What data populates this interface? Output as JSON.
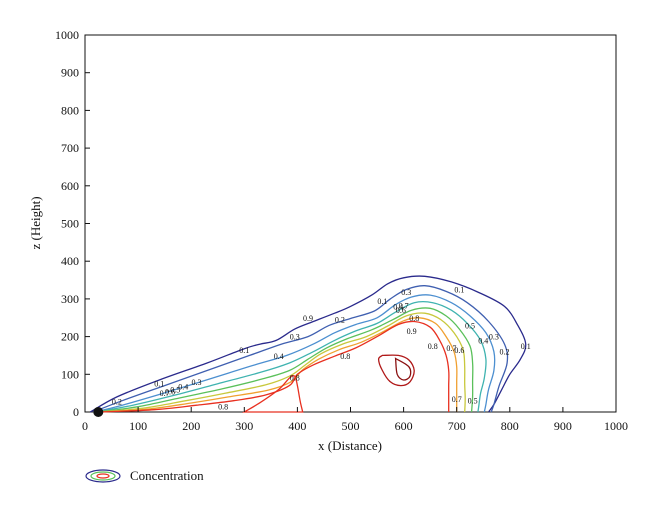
{
  "chart_data": {
    "type": "contour",
    "title": "",
    "xlabel": "x (Distance)",
    "ylabel": "z (Height)",
    "xlim": [
      0,
      1000
    ],
    "ylim": [
      0,
      1000
    ],
    "x_ticks": [
      0,
      100,
      200,
      300,
      400,
      500,
      600,
      700,
      800,
      900,
      1000
    ],
    "y_ticks": [
      0,
      100,
      200,
      300,
      400,
      500,
      600,
      700,
      800,
      900,
      1000
    ],
    "source_point": {
      "x": 25,
      "y": 0
    },
    "legend": {
      "label": "Concentration",
      "placement": "bottom-left"
    },
    "levels": [
      {
        "value": 0.1,
        "color": "#2a2a8c",
        "points": [
          [
            10,
            0
          ],
          [
            60,
            40
          ],
          [
            140,
            85
          ],
          [
            230,
            130
          ],
          [
            300,
            168
          ],
          [
            330,
            180
          ],
          [
            360,
            190
          ],
          [
            395,
            220
          ],
          [
            430,
            240
          ],
          [
            470,
            262
          ],
          [
            500,
            280
          ],
          [
            540,
            310
          ],
          [
            570,
            340
          ],
          [
            600,
            356
          ],
          [
            640,
            360
          ],
          [
            690,
            345
          ],
          [
            740,
            318
          ],
          [
            790,
            280
          ],
          [
            815,
            230
          ],
          [
            830,
            180
          ],
          [
            820,
            140
          ],
          [
            800,
            100
          ],
          [
            785,
            60
          ],
          [
            770,
            20
          ],
          [
            760,
            0
          ]
        ],
        "labels": [
          {
            "x": 140,
            "y": 75,
            "text": "0.1"
          },
          {
            "x": 300,
            "y": 165,
            "text": "0.1"
          },
          {
            "x": 560,
            "y": 295,
            "text": "0.1"
          },
          {
            "x": 705,
            "y": 325,
            "text": "0.1"
          },
          {
            "x": 830,
            "y": 175,
            "text": "0.1"
          }
        ]
      },
      {
        "value": 0.2,
        "color": "#3f5fb0",
        "points": [
          [
            15,
            0
          ],
          [
            70,
            30
          ],
          [
            150,
            70
          ],
          [
            230,
            110
          ],
          [
            310,
            150
          ],
          [
            370,
            180
          ],
          [
            420,
            200
          ],
          [
            460,
            230
          ],
          [
            500,
            248
          ],
          [
            545,
            268
          ],
          [
            575,
            300
          ],
          [
            605,
            325
          ],
          [
            640,
            335
          ],
          [
            680,
            320
          ],
          [
            720,
            290
          ],
          [
            760,
            240
          ],
          [
            790,
            180
          ],
          [
            795,
            130
          ],
          [
            780,
            70
          ],
          [
            770,
            20
          ],
          [
            765,
            0
          ]
        ],
        "labels": [
          {
            "x": 60,
            "y": 28,
            "text": "0.2"
          },
          {
            "x": 480,
            "y": 245,
            "text": "0.2"
          },
          {
            "x": 790,
            "y": 160,
            "text": "0.2"
          }
        ]
      },
      {
        "value": 0.3,
        "color": "#4c8fd0",
        "points": [
          [
            20,
            0
          ],
          [
            80,
            22
          ],
          [
            160,
            55
          ],
          [
            240,
            90
          ],
          [
            320,
            125
          ],
          [
            380,
            150
          ],
          [
            430,
            180
          ],
          [
            470,
            210
          ],
          [
            510,
            232
          ],
          [
            550,
            250
          ],
          [
            585,
            285
          ],
          [
            615,
            305
          ],
          [
            650,
            310
          ],
          [
            690,
            290
          ],
          [
            725,
            255
          ],
          [
            755,
            210
          ],
          [
            770,
            160
          ],
          [
            770,
            110
          ],
          [
            760,
            60
          ],
          [
            755,
            20
          ],
          [
            752,
            0
          ]
        ],
        "labels": [
          {
            "x": 210,
            "y": 80,
            "text": "0.3"
          },
          {
            "x": 395,
            "y": 200,
            "text": "0.3"
          },
          {
            "x": 605,
            "y": 318,
            "text": "0.3"
          },
          {
            "x": 770,
            "y": 200,
            "text": "0.3"
          }
        ]
      },
      {
        "value": 0.4,
        "color": "#3fb3b0",
        "points": [
          [
            22,
            0
          ],
          [
            90,
            18
          ],
          [
            170,
            45
          ],
          [
            250,
            75
          ],
          [
            330,
            105
          ],
          [
            385,
            130
          ],
          [
            430,
            160
          ],
          [
            470,
            190
          ],
          [
            510,
            215
          ],
          [
            550,
            235
          ],
          [
            585,
            265
          ],
          [
            620,
            290
          ],
          [
            655,
            290
          ],
          [
            690,
            270
          ],
          [
            720,
            235
          ],
          [
            745,
            190
          ],
          [
            755,
            140
          ],
          [
            752,
            90
          ],
          [
            745,
            50
          ],
          [
            742,
            20
          ],
          [
            740,
            0
          ]
        ],
        "labels": [
          {
            "x": 185,
            "y": 68,
            "text": "0.4"
          },
          {
            "x": 365,
            "y": 148,
            "text": "0.4"
          },
          {
            "x": 590,
            "y": 280,
            "text": "0.4"
          },
          {
            "x": 750,
            "y": 190,
            "text": "0.4"
          }
        ]
      },
      {
        "value": 0.5,
        "color": "#5ac05a",
        "points": [
          [
            24,
            0
          ],
          [
            100,
            14
          ],
          [
            180,
            38
          ],
          [
            260,
            62
          ],
          [
            335,
            88
          ],
          [
            385,
            110
          ],
          [
            420,
            140
          ],
          [
            455,
            170
          ],
          [
            495,
            195
          ],
          [
            540,
            218
          ],
          [
            580,
            245
          ],
          [
            615,
            270
          ],
          [
            650,
            275
          ],
          [
            680,
            255
          ],
          [
            705,
            220
          ],
          [
            725,
            175
          ],
          [
            730,
            130
          ],
          [
            730,
            80
          ],
          [
            730,
            40
          ],
          [
            728,
            0
          ]
        ],
        "labels": [
          {
            "x": 170,
            "y": 60,
            "text": "0.5"
          },
          {
            "x": 725,
            "y": 230,
            "text": "0.5"
          },
          {
            "x": 730,
            "y": 30,
            "text": "0.5"
          }
        ]
      },
      {
        "value": 0.6,
        "color": "#c8c83c",
        "points": [
          [
            25,
            0
          ],
          [
            110,
            10
          ],
          [
            190,
            30
          ],
          [
            265,
            50
          ],
          [
            340,
            72
          ],
          [
            385,
            95
          ],
          [
            415,
            125
          ],
          [
            445,
            155
          ],
          [
            485,
            180
          ],
          [
            530,
            200
          ],
          [
            570,
            228
          ],
          [
            605,
            255
          ],
          [
            640,
            262
          ],
          [
            670,
            245
          ],
          [
            695,
            210
          ],
          [
            712,
            165
          ],
          [
            715,
            120
          ],
          [
            715,
            75
          ],
          [
            716,
            35
          ],
          [
            715,
            0
          ]
        ],
        "labels": [
          {
            "x": 160,
            "y": 55,
            "text": "0.6"
          },
          {
            "x": 595,
            "y": 270,
            "text": "0.6"
          },
          {
            "x": 705,
            "y": 165,
            "text": "0.6"
          }
        ]
      },
      {
        "value": 0.7,
        "color": "#f0a030",
        "points": [
          [
            26,
            0
          ],
          [
            120,
            8
          ],
          [
            200,
            24
          ],
          [
            270,
            40
          ],
          [
            345,
            58
          ],
          [
            388,
            80
          ],
          [
            410,
            112
          ],
          [
            440,
            140
          ],
          [
            478,
            165
          ],
          [
            520,
            185
          ],
          [
            560,
            212
          ],
          [
            600,
            242
          ],
          [
            630,
            250
          ],
          [
            660,
            235
          ],
          [
            680,
            200
          ],
          [
            695,
            160
          ],
          [
            700,
            120
          ],
          [
            700,
            80
          ],
          [
            700,
            40
          ],
          [
            700,
            0
          ]
        ],
        "labels": [
          {
            "x": 150,
            "y": 50,
            "text": "0.7"
          },
          {
            "x": 600,
            "y": 282,
            "text": "0.7"
          },
          {
            "x": 690,
            "y": 170,
            "text": "0.7"
          },
          {
            "x": 700,
            "y": 35,
            "text": "0.7"
          }
        ]
      },
      {
        "value": 0.8,
        "color": "#e83020",
        "points": [
          [
            28,
            0
          ],
          [
            130,
            6
          ],
          [
            210,
            18
          ],
          [
            280,
            30
          ],
          [
            340,
            45
          ],
          [
            385,
            70
          ],
          [
            400,
            100
          ],
          [
            430,
            125
          ],
          [
            470,
            148
          ],
          [
            510,
            170
          ],
          [
            550,
            200
          ],
          [
            590,
            232
          ],
          [
            620,
            240
          ],
          [
            650,
            225
          ],
          [
            668,
            190
          ],
          [
            680,
            150
          ],
          [
            685,
            110
          ],
          [
            685,
            70
          ],
          [
            685,
            30
          ],
          [
            685,
            0
          ]
        ],
        "labels": [
          {
            "x": 395,
            "y": 92,
            "text": "0.8"
          },
          {
            "x": 620,
            "y": 250,
            "text": "0.8"
          },
          {
            "x": 655,
            "y": 175,
            "text": "0.8"
          },
          {
            "x": 490,
            "y": 148,
            "text": "0.8"
          },
          {
            "x": 260,
            "y": 15,
            "text": "0.8"
          }
        ]
      },
      {
        "value": 0.9,
        "color": "#b01818",
        "points": [
          [
            560,
            150
          ],
          [
            590,
            150
          ],
          [
            610,
            138
          ],
          [
            620,
            110
          ],
          [
            612,
            80
          ],
          [
            595,
            70
          ],
          [
            575,
            80
          ],
          [
            560,
            110
          ],
          [
            553,
            140
          ],
          [
            560,
            150
          ]
        ],
        "labels": [
          {
            "x": 615,
            "y": 215,
            "text": "0.9"
          },
          {
            "x": 420,
            "y": 250,
            "text": "0.9"
          }
        ]
      }
    ],
    "inner_regions": [
      {
        "value": 0.8,
        "color": "#e83020",
        "points": [
          [
            300,
            0
          ],
          [
            330,
            25
          ],
          [
            365,
            60
          ],
          [
            385,
            90
          ],
          [
            395,
            95
          ],
          [
            400,
            70
          ],
          [
            405,
            30
          ],
          [
            410,
            0
          ]
        ]
      },
      {
        "value": 0.9,
        "color": "#8a1010",
        "points": [
          [
            585,
            142
          ],
          [
            610,
            120
          ],
          [
            612,
            95
          ],
          [
            600,
            85
          ],
          [
            588,
            100
          ],
          [
            585,
            142
          ]
        ]
      }
    ]
  }
}
